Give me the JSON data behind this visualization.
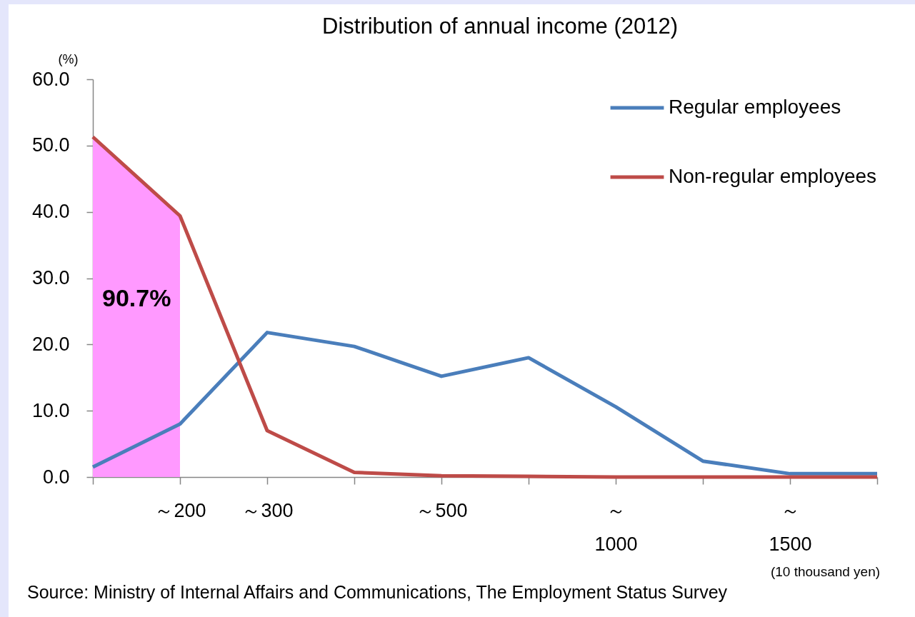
{
  "chart_data": {
    "type": "line",
    "title": "Distribution of annual income (2012)",
    "ylabel": "(%)",
    "xlabel": "(10 thousand yen)",
    "categories": [
      null,
      "～200",
      "～300",
      null,
      "～500",
      null,
      "～\n1000",
      null,
      "～\n1500",
      null
    ],
    "series": [
      {
        "type": "area",
        "color": "#ff99ff",
        "values": [
          51.3,
          39.4,
          null,
          null,
          null,
          null,
          null,
          null,
          null,
          null
        ]
      },
      {
        "name": "Regular employees",
        "color": "#4a7ebb",
        "values": [
          1.5,
          8.0,
          21.8,
          19.7,
          15.2,
          18.0,
          10.6,
          2.4,
          0.5,
          0.5
        ]
      },
      {
        "name": "Non-regular employees",
        "color": "#be4b48",
        "values": [
          51.3,
          39.4,
          7.0,
          0.7,
          0.2,
          0.1,
          0.0,
          0.0,
          0.0,
          0.0
        ]
      }
    ],
    "ylim": [
      0,
      60
    ],
    "yticks": [
      {
        "value": 0,
        "label": "0.0"
      },
      {
        "value": 10,
        "label": "10.0"
      },
      {
        "value": 20,
        "label": "20.0"
      },
      {
        "value": 30,
        "label": "30.0"
      },
      {
        "value": 40,
        "label": "40.0"
      },
      {
        "value": 50,
        "label": "50.0"
      },
      {
        "value": 60,
        "label": "60.0"
      }
    ],
    "legend": "top right",
    "annotations": [
      "90.7%",
      "Source: Ministry of Internal Affairs and Communications, The Employment Status Survey"
    ]
  }
}
